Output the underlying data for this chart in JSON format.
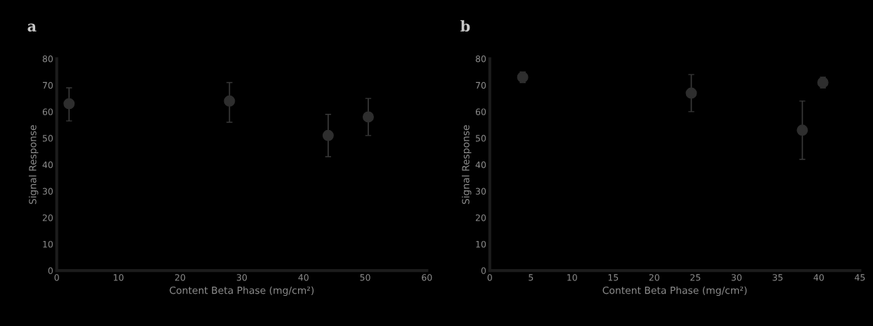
{
  "chart_data": [
    {
      "type": "scatter",
      "title": "a",
      "xlabel": "Content Beta Phase (mg/cm²)",
      "ylabel": "Signal Response",
      "xlim": [
        0,
        60
      ],
      "ylim": [
        0,
        80
      ],
      "xticks": [
        0,
        10,
        20,
        30,
        40,
        50,
        60
      ],
      "yticks": [
        0,
        10,
        20,
        30,
        40,
        50,
        60,
        70,
        80
      ],
      "marker": "circle",
      "series": [
        {
          "color": "#2e2e2e",
          "x": [
            2,
            28,
            44,
            50.5
          ],
          "values": [
            63,
            64,
            51,
            58
          ],
          "errors": [
            [
              56.5,
              69
            ],
            [
              56,
              71
            ],
            [
              43,
              59
            ],
            [
              51,
              65
            ]
          ]
        }
      ]
    },
    {
      "type": "scatter",
      "title": "b",
      "xlabel": "Content Beta Phase (mg/cm²)",
      "ylabel": "Signal Response",
      "xlim": [
        0,
        45
      ],
      "ylim": [
        0,
        80
      ],
      "xticks": [
        0,
        5,
        10,
        15,
        20,
        25,
        30,
        35,
        40,
        45
      ],
      "yticks": [
        0,
        10,
        20,
        30,
        40,
        50,
        60,
        70,
        80
      ],
      "marker": "circle",
      "series": [
        {
          "color": "#2e2e2e",
          "x": [
            4,
            24.5,
            38,
            40.5
          ],
          "values": [
            73,
            67,
            53,
            71
          ],
          "errors": [
            2,
            [
              60,
              74
            ],
            [
              42,
              64
            ],
            2
          ]
        }
      ]
    }
  ]
}
